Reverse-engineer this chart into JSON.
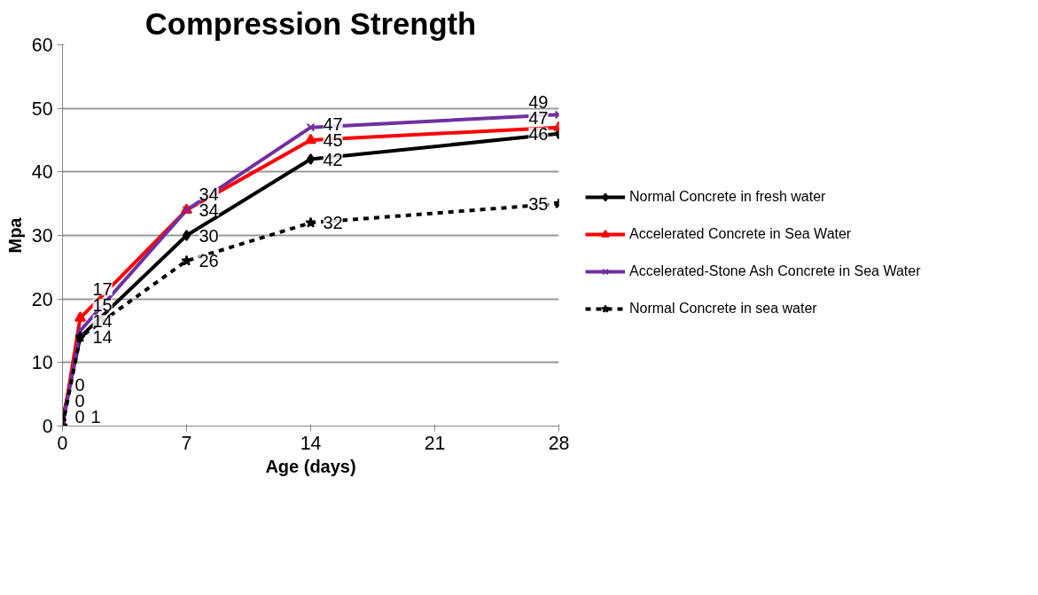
{
  "chart_data": {
    "type": "line",
    "title": "Compression Strength",
    "xlabel": "Age (days)",
    "ylabel": "Mpa",
    "x": [
      0,
      1,
      7,
      14,
      28
    ],
    "xlim": [
      0,
      28
    ],
    "xticks": [
      0,
      7,
      14,
      21,
      28
    ],
    "ylim": [
      0,
      60
    ],
    "yticks": [
      0,
      10,
      20,
      30,
      40,
      50,
      60
    ],
    "grid": "y",
    "legend": "right",
    "data_labels": true,
    "series": [
      {
        "name": "Normal Concrete in fresh water",
        "color": "#000000",
        "marker": "diamond",
        "line_style": "solid",
        "values": [
          1,
          14,
          30,
          42,
          46
        ]
      },
      {
        "name": "Accelerated Concrete in Sea Water",
        "color": "#ff0000",
        "marker": "triangle",
        "line_style": "solid",
        "values": [
          0,
          17,
          34,
          45,
          47
        ]
      },
      {
        "name": "Accelerated-Stone Ash Concrete in Sea Water",
        "color": "#7030a0",
        "marker": "cross",
        "line_style": "solid",
        "values": [
          0,
          15,
          34,
          47,
          49
        ]
      },
      {
        "name": "Normal Concrete in sea water",
        "color": "#000000",
        "marker": "star",
        "line_style": "dashed",
        "values": [
          0,
          14,
          26,
          32,
          35
        ]
      }
    ]
  }
}
